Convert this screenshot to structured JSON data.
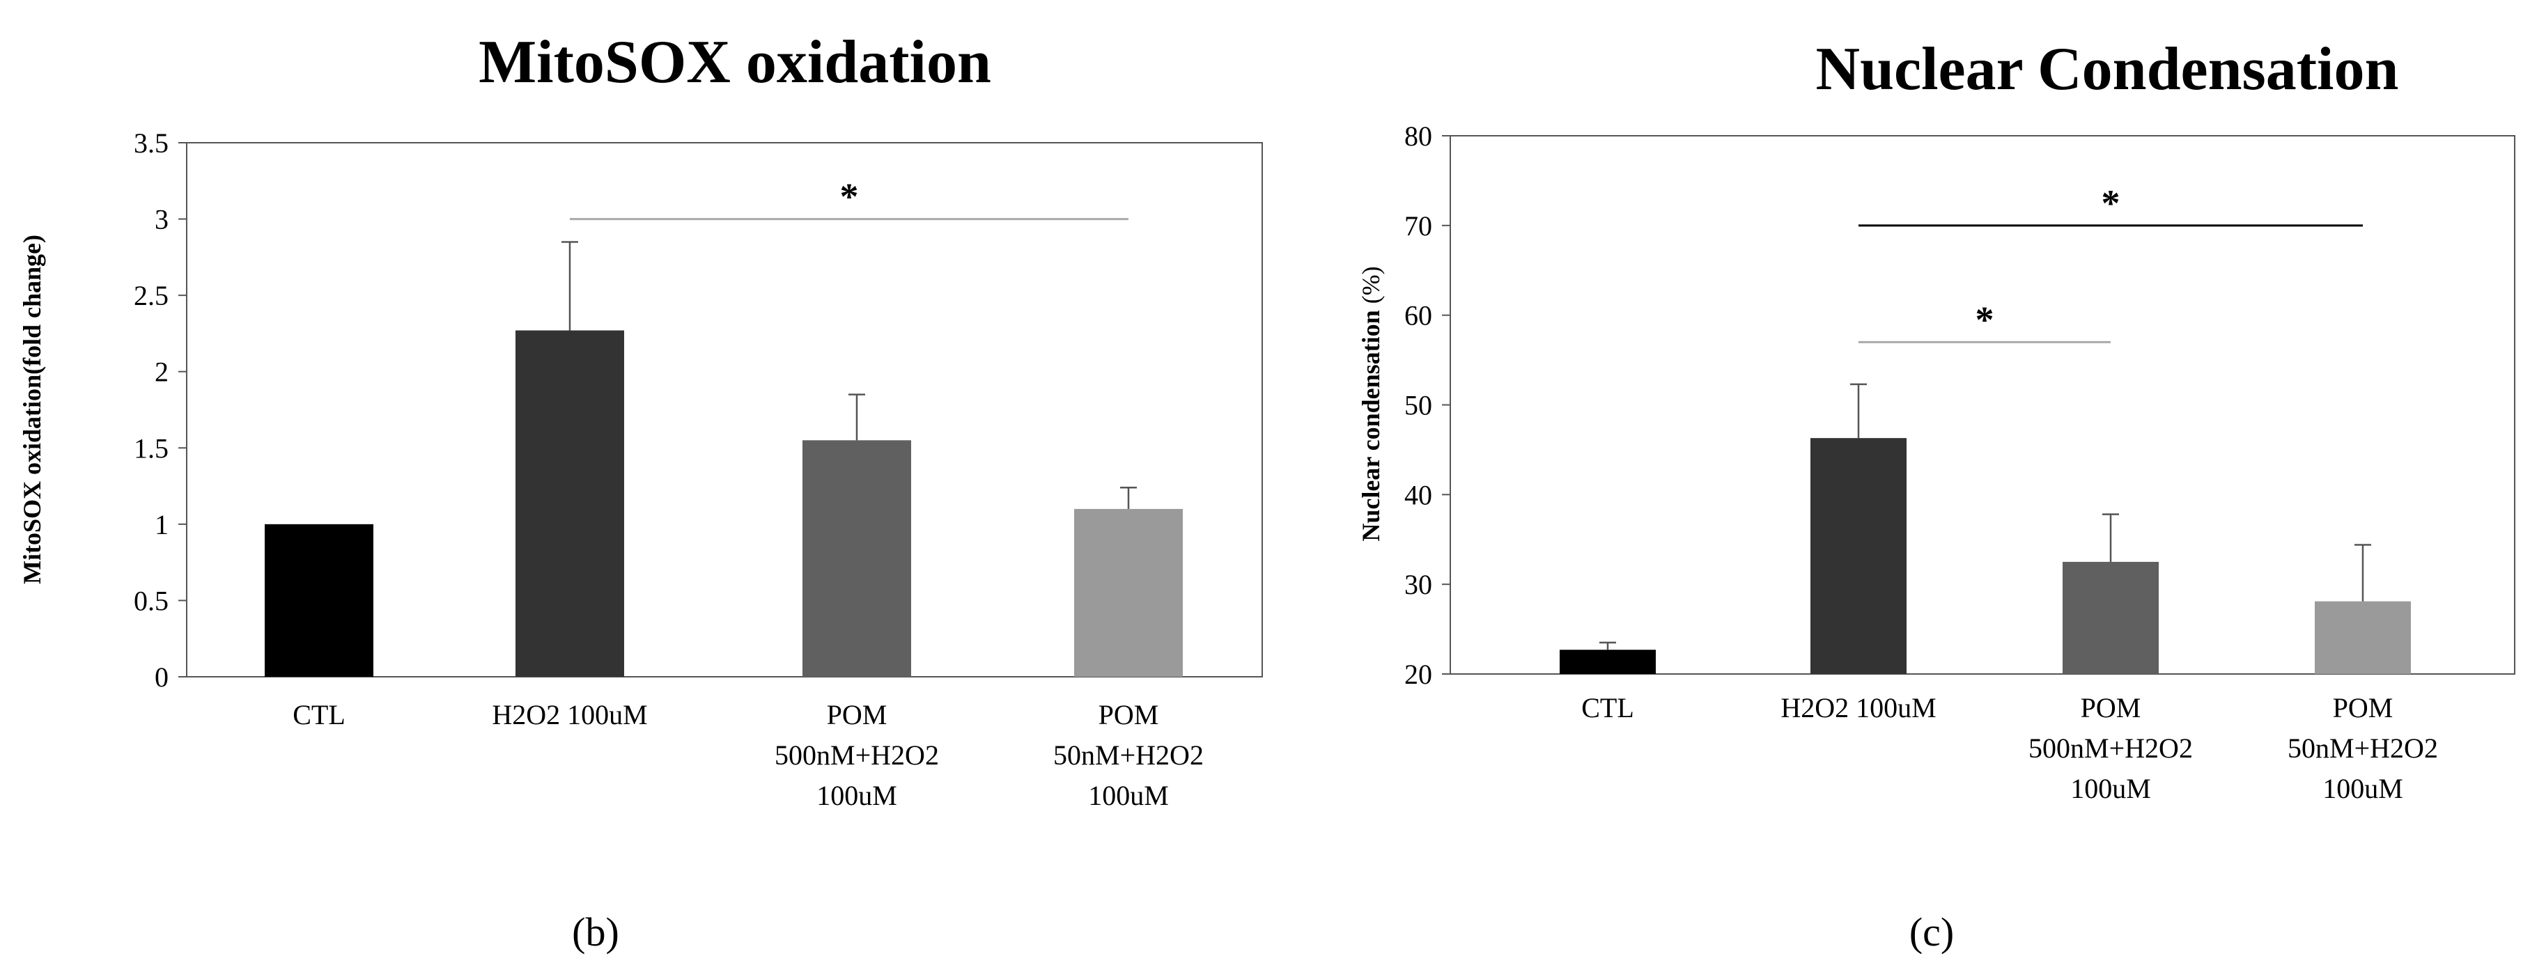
{
  "chart_data": [
    {
      "type": "bar",
      "panel_label": "(b)",
      "title": "MitoSOX oxidation",
      "xlabel": "",
      "ylabel": "MitoSOX  oxidation(fold change)",
      "ylim": [
        0,
        3.5
      ],
      "yticks": [
        "0",
        "0.5",
        "1",
        "1.5",
        "2",
        "2.5",
        "3",
        "3.5"
      ],
      "categories": [
        [
          "CTL"
        ],
        [
          "H2O2  100uM"
        ],
        [
          "POM",
          "500nM+H2O2",
          "100uM"
        ],
        [
          "POM",
          "50nM+H2O2",
          "100uM"
        ]
      ],
      "values": [
        1.0,
        2.27,
        1.55,
        1.1
      ],
      "errors": [
        0.0,
        0.58,
        0.3,
        0.14
      ],
      "colors": [
        "#000000",
        "#333333",
        "#606060",
        "#9a9a9a"
      ],
      "significance": [
        {
          "from": 1,
          "to": 3,
          "y": 3.0,
          "label": "*",
          "color": "#aaaaaa"
        }
      ]
    },
    {
      "type": "bar",
      "panel_label": "(c)",
      "title": "Nuclear Condensation",
      "xlabel": "",
      "ylabel": "Nuclear condensation",
      "ylabel_unit": "(%)",
      "ylim": [
        20,
        80
      ],
      "yticks": [
        "20",
        "30",
        "40",
        "50",
        "60",
        "70",
        "80"
      ],
      "categories": [
        [
          "CTL"
        ],
        [
          "H2O2  100uM"
        ],
        [
          "POM",
          "500nM+H2O2",
          "100uM"
        ],
        [
          "POM",
          "50nM+H2O2",
          "100uM"
        ]
      ],
      "values": [
        22.7,
        46.3,
        32.5,
        28.1
      ],
      "errors": [
        0.8,
        6.0,
        5.3,
        6.3
      ],
      "colors": [
        "#000000",
        "#333333",
        "#606060",
        "#9a9a9a"
      ],
      "significance": [
        {
          "from": 1,
          "to": 3,
          "y": 70,
          "label": "*",
          "color": "#000000"
        },
        {
          "from": 1,
          "to": 2,
          "y": 57,
          "label": "*",
          "color": "#aaaaaa"
        }
      ]
    }
  ]
}
